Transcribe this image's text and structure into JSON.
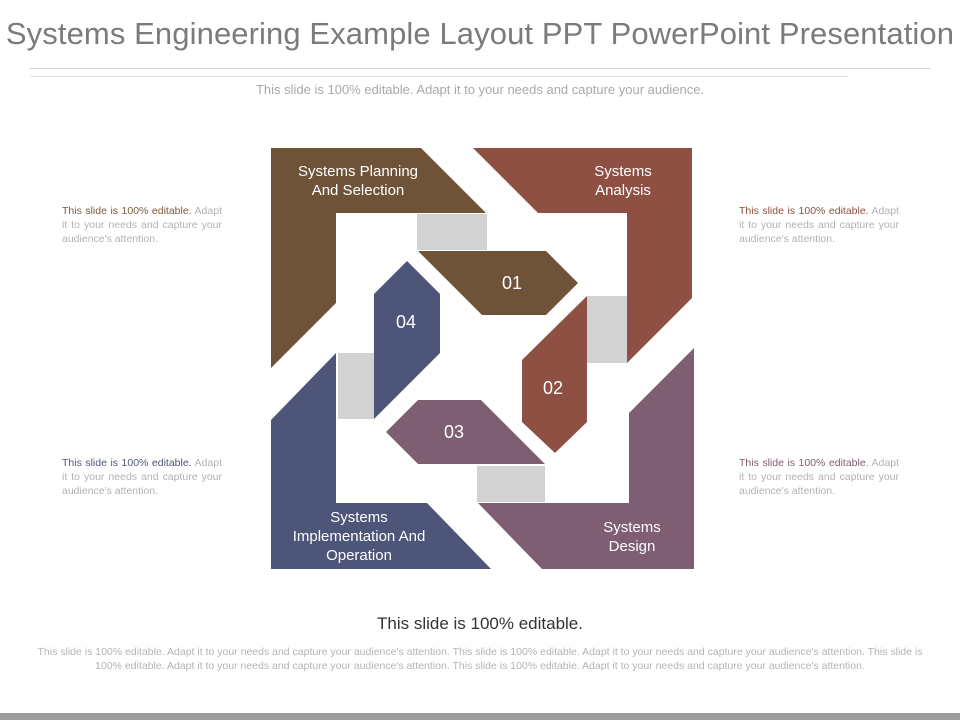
{
  "header": {
    "title": "Systems Engineering Example Layout PPT PowerPoint Presentation",
    "subtitle": "This slide is 100% editable. Adapt it to your needs and capture your audience."
  },
  "diagram": {
    "colors": {
      "brown": "#6e5338",
      "rust": "#8e5043",
      "mauve": "#7d5e72",
      "navy": "#4d5578",
      "connector": "#d2d2d2"
    },
    "stages": [
      {
        "label": "Systems Planning And Selection",
        "number": "01"
      },
      {
        "label": "Systems Analysis",
        "number": "02"
      },
      {
        "label": "Systems Design",
        "number": "03"
      },
      {
        "label": "Systems Implementation And Operation",
        "number": "04"
      }
    ]
  },
  "side_notes": [
    {
      "lead": "This slide is 100% editable.",
      "body": "Adapt it to your needs and capture your audience's attention.",
      "color": "#7a5a3c"
    },
    {
      "lead": "This slide is 100% editable.",
      "body": "Adapt it to your needs and capture your audience's attention.",
      "color": "#8e5043"
    },
    {
      "lead": "This slide is 100% editable.",
      "body": "Adapt it to your needs and capture your audience's attention.",
      "color": "#4d5578"
    },
    {
      "lead": "This slide is 100% editable.",
      "body": "Adapt it to your needs and capture your audience's attention.",
      "color": "#7d5e72"
    }
  ],
  "footer": {
    "title": "This slide is 100% editable.",
    "body": "This slide is 100% editable. Adapt it to your needs and capture your audience's attention. This slide is 100% editable. Adapt it to your needs and capture your audience's attention. This slide is 100% editable. Adapt it to your needs and capture your audience's attention. This slide is 100% editable. Adapt it to your needs and capture your audience's attention."
  }
}
